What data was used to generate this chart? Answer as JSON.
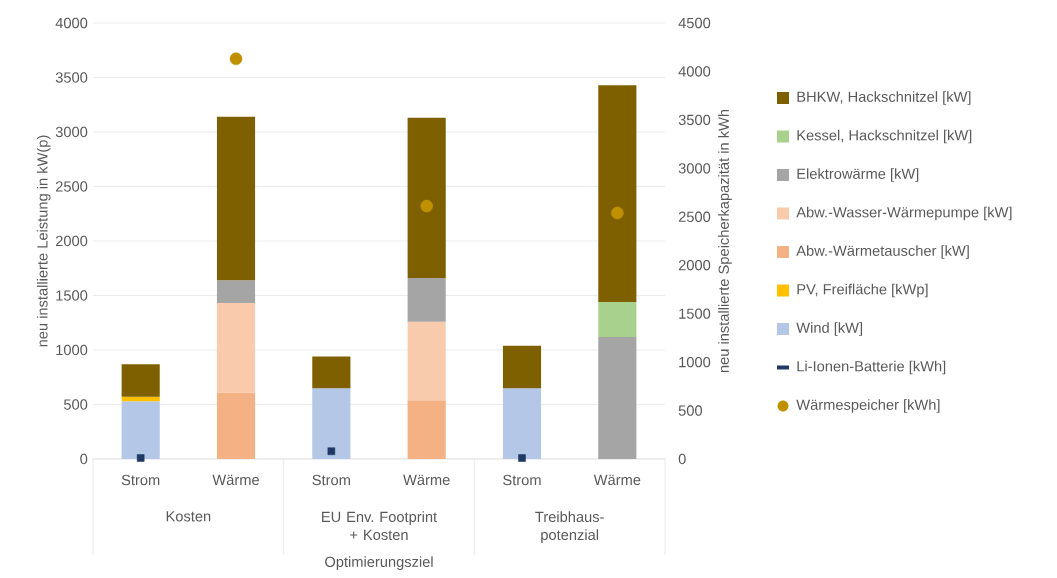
{
  "chart_data": {
    "type": "bar",
    "stacked": true,
    "categories": [
      "Strom",
      "Wärme",
      "Strom",
      "Wärme",
      "Strom",
      "Wärme"
    ],
    "xlabel": "Optimierungsziel",
    "ylabel": "neu installierte Leistung in kW(p)",
    "y2label": "neu installierte Speicherkapazität in kWh",
    "annotations": [
      "Kosten",
      "EU Env. Footprint + Kosten",
      "Treibhaus-potenzial"
    ],
    "ylim": [
      0,
      4000
    ],
    "yticks": [
      0,
      500,
      1000,
      1500,
      2000,
      2500,
      3000,
      3500,
      4000
    ],
    "y2lim": [
      0,
      4500
    ],
    "y2ticks": [
      0,
      500,
      1000,
      1500,
      2000,
      2500,
      3000,
      3500,
      4000,
      4500
    ],
    "grid": "y",
    "legend": "right",
    "series": [
      {
        "name": "Wärmespeicher [kWh]",
        "type": "scatter",
        "axis": "y2",
        "marker": "circle",
        "color": "#bf9000",
        "values": [
          null,
          4130,
          null,
          2610,
          null,
          2540
        ]
      },
      {
        "name": "Li-Ionen-Batterie [kWh]",
        "type": "scatter",
        "axis": "y2",
        "marker": "square",
        "color": "#1f3864",
        "values": [
          10,
          null,
          80,
          null,
          10,
          null
        ]
      },
      {
        "name": "Wind [kW]",
        "color": "#b4c7e7",
        "values": [
          530,
          null,
          650,
          null,
          650,
          null
        ]
      },
      {
        "name": "PV, Freifläche [kWp]",
        "color": "#ffc000",
        "values": [
          40,
          null,
          null,
          null,
          null,
          null
        ]
      },
      {
        "name": "Abw.-Wärmetauscher [kW]",
        "color": "#f4b183",
        "values": [
          null,
          610,
          null,
          540,
          null,
          null
        ]
      },
      {
        "name": "Abw.-Wasser-Wärmepumpe [kW]",
        "color": "#f8cbad",
        "values": [
          null,
          820,
          null,
          720,
          null,
          null
        ]
      },
      {
        "name": "Elektrowärme [kW]",
        "color": "#a5a5a5",
        "values": [
          null,
          210,
          null,
          400,
          null,
          1120
        ]
      },
      {
        "name": "Kessel, Hackschnitzel [kW]",
        "color": "#a9d18e",
        "values": [
          null,
          null,
          null,
          null,
          null,
          320
        ]
      },
      {
        "name": "BHKW, Hackschnitzel [kW]",
        "color": "#7f6000",
        "values": [
          300,
          1500,
          290,
          1470,
          390,
          1990
        ]
      }
    ]
  }
}
